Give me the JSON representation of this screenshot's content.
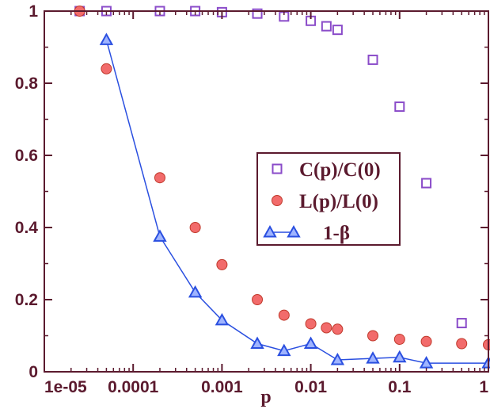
{
  "chart_data": {
    "type": "scatter",
    "xlabel": "p",
    "ylabel": "",
    "x_scale": "log",
    "xlim": [
      1e-05,
      1
    ],
    "ylim": [
      0,
      1
    ],
    "x_ticks": [
      1e-05,
      0.0001,
      0.001,
      0.01,
      0.1,
      1
    ],
    "x_tick_labels": [
      "1e-05",
      "0.0001",
      "0.001",
      "0.01",
      "0.1",
      "1"
    ],
    "y_ticks": [
      0,
      0.2,
      0.4,
      0.6,
      0.8,
      1
    ],
    "y_tick_labels": [
      "0",
      "0.2",
      "0.4",
      "0.6",
      "0.8",
      "1"
    ],
    "grid": false,
    "legend_position": "center-right",
    "series": [
      {
        "name": "C(p)/C(0)",
        "marker": "open-square",
        "color": "#8a4bc9",
        "line": false,
        "x": [
          2.5e-05,
          5e-05,
          0.0002,
          0.0005,
          0.001,
          0.0025,
          0.005,
          0.01,
          0.015,
          0.02,
          0.05,
          0.1,
          0.2,
          0.5
        ],
        "y": [
          1.0,
          1.0,
          1.0,
          1.0,
          0.997,
          0.993,
          0.985,
          0.973,
          0.958,
          0.948,
          0.865,
          0.735,
          0.523,
          0.135
        ]
      },
      {
        "name": "L(p)/L(0)",
        "marker": "filled-circle",
        "color": "#f26b6b",
        "line": false,
        "x": [
          2.5e-05,
          5e-05,
          0.0002,
          0.0005,
          0.001,
          0.0025,
          0.005,
          0.01,
          0.015,
          0.02,
          0.05,
          0.1,
          0.2,
          0.5,
          1
        ],
        "y": [
          1.0,
          0.84,
          0.538,
          0.4,
          0.297,
          0.2,
          0.157,
          0.133,
          0.122,
          0.118,
          0.1,
          0.09,
          0.084,
          0.078,
          0.075
        ]
      },
      {
        "name": "1-β",
        "marker": "open-triangle",
        "color": "#2a4fe0",
        "line": true,
        "x": [
          5e-05,
          0.0002,
          0.0005,
          0.001,
          0.0025,
          0.005,
          0.01,
          0.02,
          0.05,
          0.1,
          0.2,
          1
        ],
        "y": [
          0.92,
          0.375,
          0.22,
          0.143,
          0.078,
          0.058,
          0.078,
          0.033,
          0.037,
          0.04,
          0.024,
          0.024
        ]
      }
    ]
  }
}
